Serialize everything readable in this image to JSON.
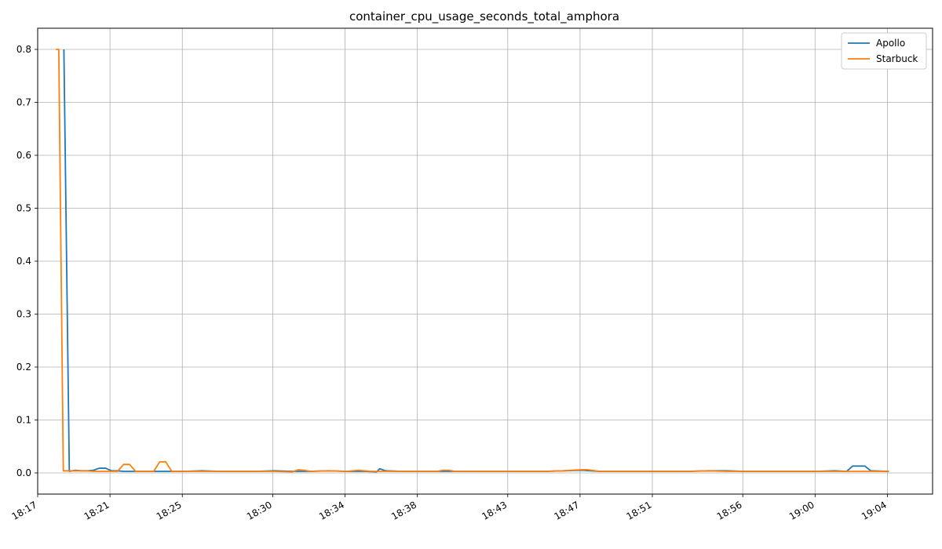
{
  "chart_data": {
    "type": "line",
    "title": "container_cpu_usage_seconds_total_amphora",
    "xlabel": "",
    "ylabel": "",
    "x_unit": "time (HH:MM)",
    "xlim": [
      "18:17:00",
      "19:06:30"
    ],
    "ylim": [
      -0.04,
      0.84
    ],
    "x_ticks": [
      "18:17",
      "18:21",
      "18:25",
      "18:30",
      "18:34",
      "18:38",
      "18:43",
      "18:47",
      "18:51",
      "18:56",
      "19:00",
      "19:04"
    ],
    "y_ticks": [
      "0.0",
      "0.1",
      "0.2",
      "0.3",
      "0.4",
      "0.5",
      "0.6",
      "0.7",
      "0.8"
    ],
    "grid": true,
    "legend_position": "top-right",
    "series": [
      {
        "name": "Apollo",
        "color": "#1f77b4",
        "points": [
          [
            "18:18:27",
            0.8
          ],
          [
            "18:18:45",
            0.003
          ],
          [
            "18:19:05",
            0.005
          ],
          [
            "18:19:25",
            0.004
          ],
          [
            "18:19:45",
            0.004
          ],
          [
            "18:20:05",
            0.005
          ],
          [
            "18:20:25",
            0.009
          ],
          [
            "18:20:45",
            0.009
          ],
          [
            "18:21:05",
            0.004
          ],
          [
            "18:21:25",
            0.004
          ],
          [
            "18:21:45",
            0.003
          ],
          [
            "18:22:05",
            0.003
          ],
          [
            "18:22:45",
            0.003
          ],
          [
            "18:23:25",
            0.003
          ],
          [
            "18:24:05",
            0.003
          ],
          [
            "18:25:05",
            0.003
          ],
          [
            "18:26:05",
            0.004
          ],
          [
            "18:27:05",
            0.003
          ],
          [
            "18:28:05",
            0.003
          ],
          [
            "18:29:05",
            0.003
          ],
          [
            "18:30:05",
            0.004
          ],
          [
            "18:31:05",
            0.003
          ],
          [
            "18:32:05",
            0.003
          ],
          [
            "18:33:05",
            0.004
          ],
          [
            "18:34:05",
            0.003
          ],
          [
            "18:35:05",
            0.003
          ],
          [
            "18:35:45",
            0.002
          ],
          [
            "18:35:55",
            0.008
          ],
          [
            "18:36:15",
            0.004
          ],
          [
            "18:37:05",
            0.003
          ],
          [
            "18:38:05",
            0.003
          ],
          [
            "18:39:05",
            0.003
          ],
          [
            "18:40:05",
            0.003
          ],
          [
            "18:41:05",
            0.003
          ],
          [
            "18:42:05",
            0.003
          ],
          [
            "18:43:05",
            0.003
          ],
          [
            "18:44:05",
            0.003
          ],
          [
            "18:45:05",
            0.003
          ],
          [
            "18:46:05",
            0.004
          ],
          [
            "18:47:05",
            0.005
          ],
          [
            "18:48:05",
            0.003
          ],
          [
            "18:49:05",
            0.003
          ],
          [
            "18:50:05",
            0.003
          ],
          [
            "18:51:05",
            0.003
          ],
          [
            "18:52:05",
            0.003
          ],
          [
            "18:53:05",
            0.003
          ],
          [
            "18:54:05",
            0.004
          ],
          [
            "18:55:05",
            0.004
          ],
          [
            "18:56:05",
            0.003
          ],
          [
            "18:57:05",
            0.003
          ],
          [
            "18:58:05",
            0.003
          ],
          [
            "18:59:05",
            0.003
          ],
          [
            "19:00:05",
            0.003
          ],
          [
            "19:01:05",
            0.004
          ],
          [
            "19:01:45",
            0.003
          ],
          [
            "19:02:05",
            0.013
          ],
          [
            "19:02:45",
            0.013
          ],
          [
            "19:03:05",
            0.004
          ],
          [
            "19:04:05",
            0.003
          ]
        ]
      },
      {
        "name": "Starbuck",
        "color": "#ff7f0e",
        "points": [
          [
            "18:18:00",
            0.8
          ],
          [
            "18:18:10",
            0.8
          ],
          [
            "18:18:25",
            0.004
          ],
          [
            "18:18:45",
            0.004
          ],
          [
            "18:19:05",
            0.004
          ],
          [
            "18:19:25",
            0.004
          ],
          [
            "18:19:45",
            0.004
          ],
          [
            "18:20:05",
            0.003
          ],
          [
            "18:20:25",
            0.003
          ],
          [
            "18:20:45",
            0.003
          ],
          [
            "18:21:05",
            0.003
          ],
          [
            "18:21:25",
            0.003
          ],
          [
            "18:21:45",
            0.016
          ],
          [
            "18:22:05",
            0.016
          ],
          [
            "18:22:25",
            0.003
          ],
          [
            "18:22:45",
            0.003
          ],
          [
            "18:23:05",
            0.003
          ],
          [
            "18:23:25",
            0.003
          ],
          [
            "18:23:45",
            0.021
          ],
          [
            "18:24:05",
            0.021
          ],
          [
            "18:24:25",
            0.003
          ],
          [
            "18:25:05",
            0.003
          ],
          [
            "18:26:05",
            0.003
          ],
          [
            "18:27:05",
            0.003
          ],
          [
            "18:28:05",
            0.003
          ],
          [
            "18:29:05",
            0.003
          ],
          [
            "18:30:05",
            0.003
          ],
          [
            "18:31:05",
            0.002
          ],
          [
            "18:31:25",
            0.006
          ],
          [
            "18:31:45",
            0.005
          ],
          [
            "18:32:05",
            0.003
          ],
          [
            "18:33:05",
            0.004
          ],
          [
            "18:34:05",
            0.003
          ],
          [
            "18:34:45",
            0.005
          ],
          [
            "18:35:05",
            0.004
          ],
          [
            "18:35:25",
            0.003
          ],
          [
            "18:36:05",
            0.003
          ],
          [
            "18:37:05",
            0.003
          ],
          [
            "18:38:05",
            0.003
          ],
          [
            "18:39:05",
            0.003
          ],
          [
            "18:39:25",
            0.005
          ],
          [
            "18:39:45",
            0.005
          ],
          [
            "18:40:05",
            0.003
          ],
          [
            "18:41:05",
            0.003
          ],
          [
            "18:42:05",
            0.003
          ],
          [
            "18:43:05",
            0.003
          ],
          [
            "18:44:05",
            0.003
          ],
          [
            "18:45:05",
            0.003
          ],
          [
            "18:46:05",
            0.004
          ],
          [
            "18:47:05",
            0.006
          ],
          [
            "18:47:25",
            0.006
          ],
          [
            "18:48:05",
            0.003
          ],
          [
            "18:49:05",
            0.003
          ],
          [
            "18:50:05",
            0.003
          ],
          [
            "18:51:05",
            0.003
          ],
          [
            "18:52:05",
            0.003
          ],
          [
            "18:53:05",
            0.003
          ],
          [
            "18:54:05",
            0.004
          ],
          [
            "18:55:05",
            0.003
          ],
          [
            "18:56:05",
            0.003
          ],
          [
            "18:57:05",
            0.003
          ],
          [
            "18:58:05",
            0.003
          ],
          [
            "18:59:05",
            0.003
          ],
          [
            "19:00:05",
            0.003
          ],
          [
            "19:01:05",
            0.003
          ],
          [
            "19:02:05",
            0.003
          ],
          [
            "19:03:05",
            0.003
          ],
          [
            "19:04:05",
            0.003
          ]
        ]
      }
    ]
  }
}
